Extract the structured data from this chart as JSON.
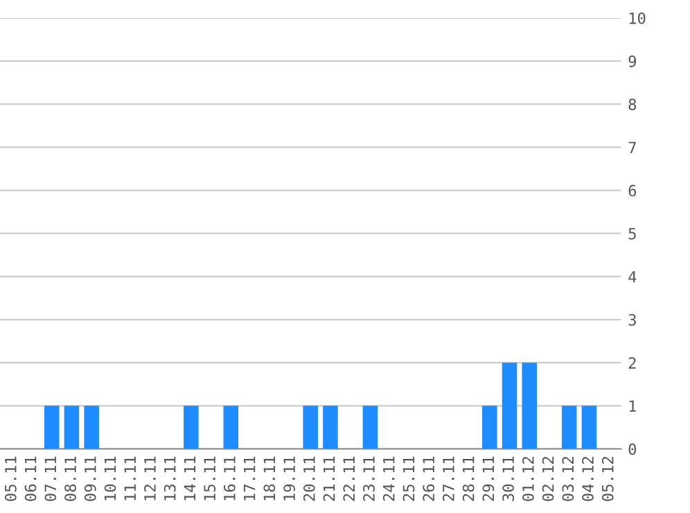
{
  "chart_data": {
    "type": "bar",
    "categories": [
      "05.11",
      "06.11",
      "07.11",
      "08.11",
      "09.11",
      "10.11",
      "11.11",
      "12.11",
      "13.11",
      "14.11",
      "15.11",
      "16.11",
      "17.11",
      "18.11",
      "19.11",
      "20.11",
      "21.11",
      "22.11",
      "23.11",
      "24.11",
      "25.11",
      "26.11",
      "27.11",
      "28.11",
      "29.11",
      "30.11",
      "01.12",
      "02.12",
      "03.12",
      "04.12",
      "05.12"
    ],
    "values": [
      0,
      0,
      1,
      1,
      1,
      0,
      0,
      0,
      0,
      1,
      0,
      1,
      0,
      0,
      0,
      1,
      1,
      0,
      1,
      0,
      0,
      0,
      0,
      0,
      1,
      2,
      2,
      0,
      1,
      1,
      0
    ],
    "color": "#1e8cff",
    "ylim": [
      0,
      10
    ],
    "yticks": [
      0,
      1,
      2,
      3,
      4,
      5,
      6,
      7,
      8,
      9,
      10
    ],
    "grid": "y",
    "legend": false
  }
}
